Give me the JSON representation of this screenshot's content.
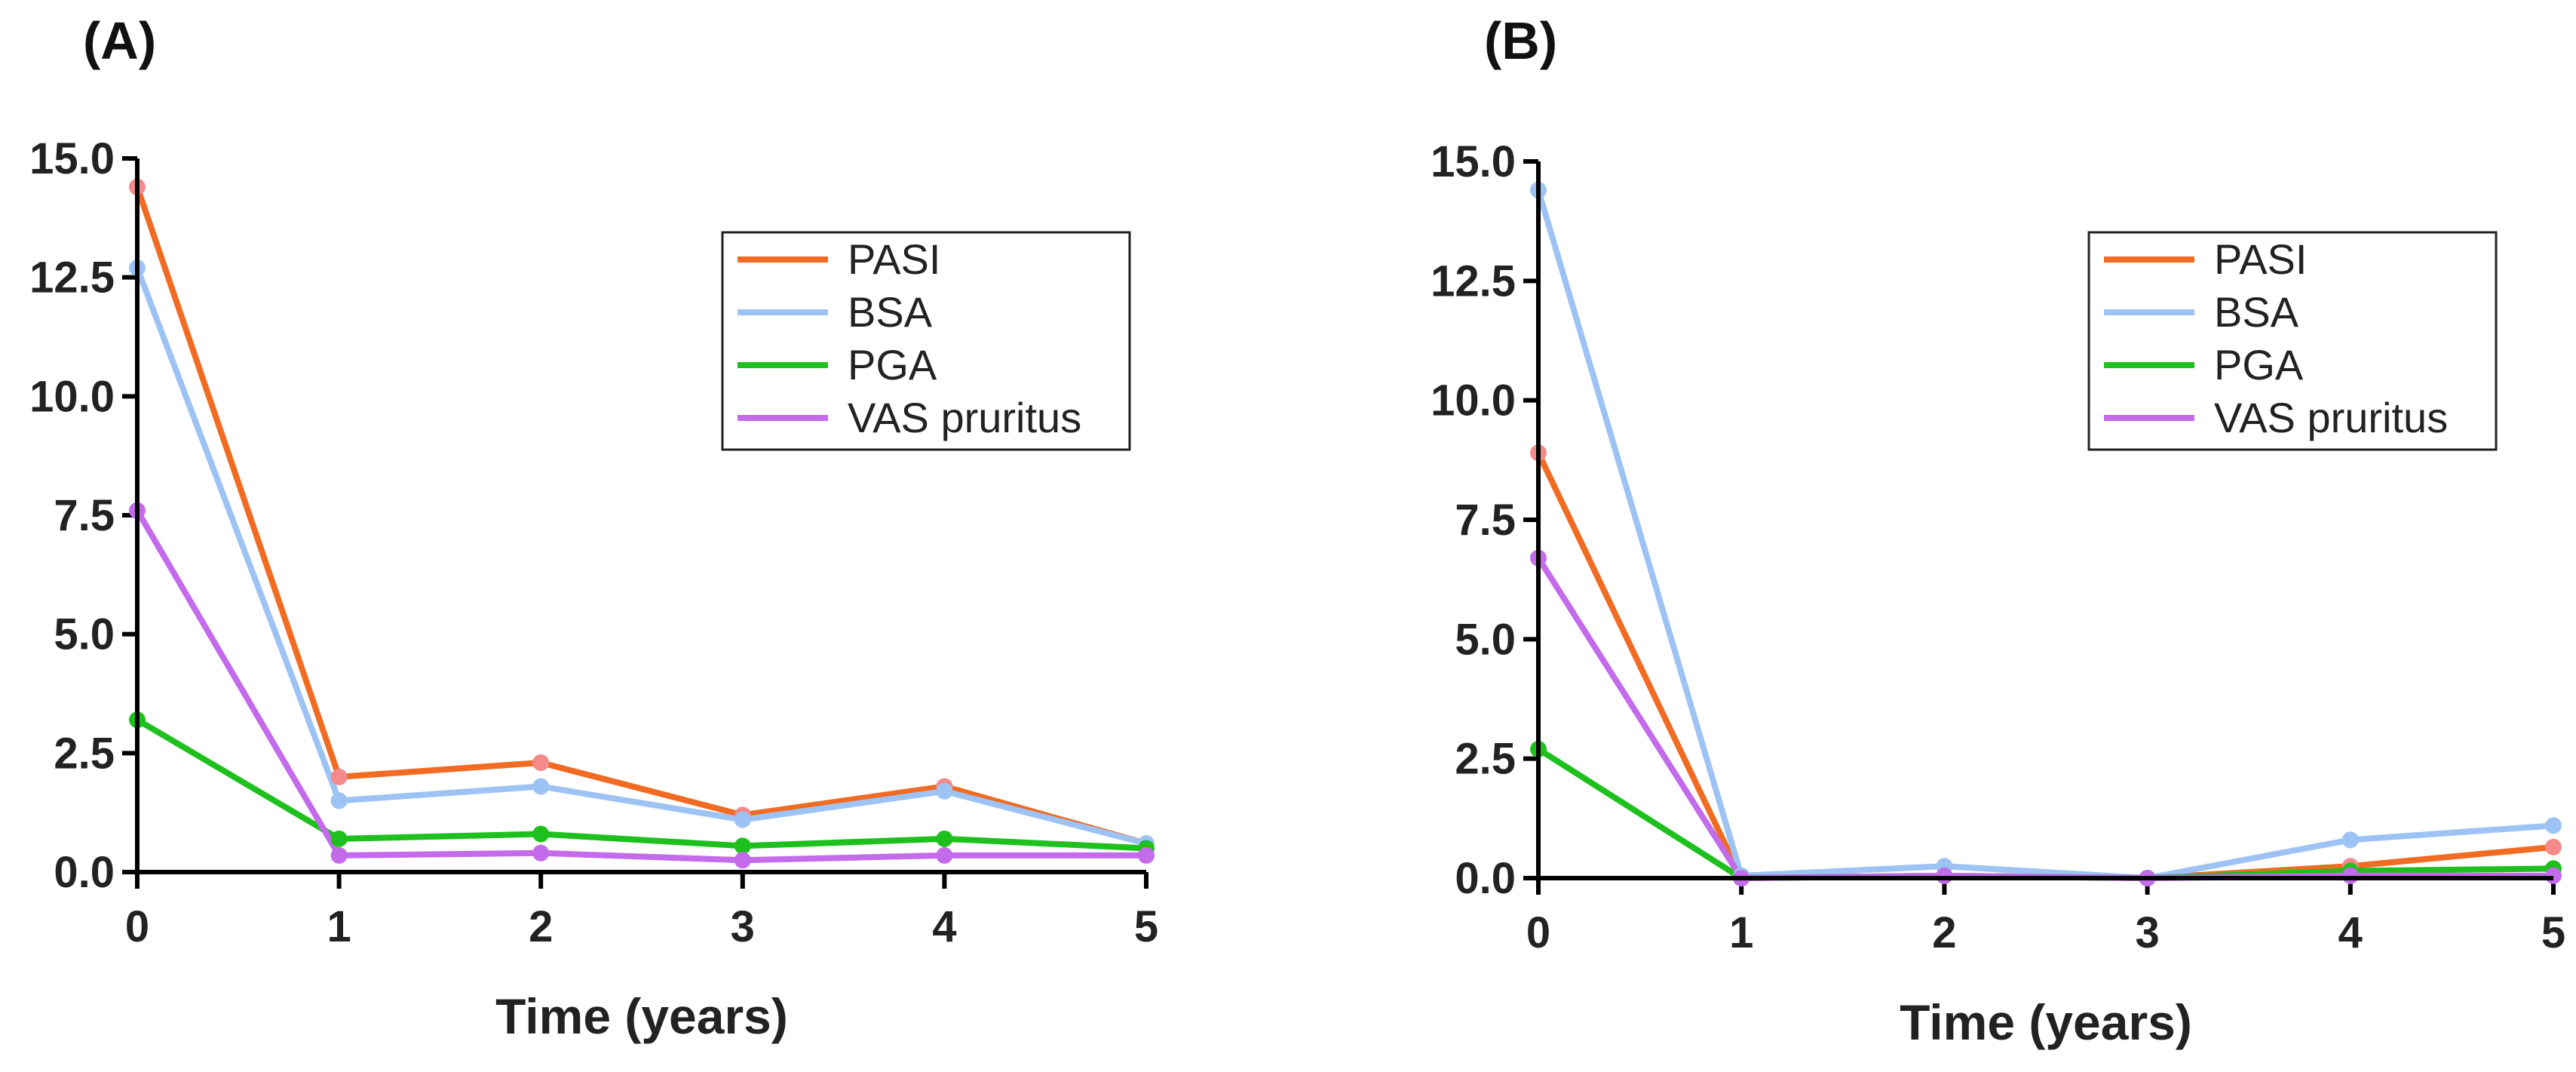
{
  "chart_data": [
    {
      "panel": "(A)",
      "type": "line",
      "x": [
        0,
        1,
        2,
        3,
        4,
        5
      ],
      "xlabel": "Time (years)",
      "ylabel": "",
      "xlim": [
        0,
        5
      ],
      "ylim": [
        0,
        15
      ],
      "xticks": [
        "0",
        "1",
        "2",
        "3",
        "4",
        "5"
      ],
      "yticks": [
        "0.0",
        "2.5",
        "5.0",
        "7.5",
        "10.0",
        "12.5",
        "15.0"
      ],
      "grid": false,
      "legend_position": "top-right",
      "series": [
        {
          "name": "PASI",
          "color": "#F26B22",
          "marker_color": "#F48A8A",
          "values": [
            14.4,
            2.0,
            2.3,
            1.2,
            1.8,
            0.6
          ]
        },
        {
          "name": "BSA",
          "color": "#9DC3F5",
          "marker_color": "#9DC3F5",
          "values": [
            12.7,
            1.5,
            1.8,
            1.1,
            1.7,
            0.6
          ]
        },
        {
          "name": "PGA",
          "color": "#1DC01D",
          "marker_color": "#1DC01D",
          "values": [
            3.2,
            0.7,
            0.8,
            0.55,
            0.7,
            0.5
          ]
        },
        {
          "name": "VAS pruritus",
          "color": "#C36BEA",
          "marker_color": "#C36BEA",
          "values": [
            7.6,
            0.35,
            0.4,
            0.25,
            0.35,
            0.35
          ]
        }
      ]
    },
    {
      "panel": "(B)",
      "type": "line",
      "x": [
        0,
        1,
        2,
        3,
        4,
        5
      ],
      "xlabel": "Time (years)",
      "ylabel": "",
      "xlim": [
        0,
        5
      ],
      "ylim": [
        0,
        15
      ],
      "xticks": [
        "0",
        "1",
        "2",
        "3",
        "4",
        "5"
      ],
      "yticks": [
        "0.0",
        "2.5",
        "5.0",
        "7.5",
        "10.0",
        "12.5",
        "15.0"
      ],
      "grid": false,
      "legend_position": "top-right",
      "series": [
        {
          "name": "PASI",
          "color": "#F26B22",
          "marker_color": "#F48A8A",
          "values": [
            8.9,
            0.0,
            0.05,
            0.0,
            0.25,
            0.65
          ]
        },
        {
          "name": "BSA",
          "color": "#9DC3F5",
          "marker_color": "#9DC3F5",
          "values": [
            14.4,
            0.05,
            0.25,
            0.0,
            0.8,
            1.1
          ]
        },
        {
          "name": "PGA",
          "color": "#1DC01D",
          "marker_color": "#1DC01D",
          "values": [
            2.7,
            0.0,
            0.05,
            0.0,
            0.15,
            0.2
          ]
        },
        {
          "name": "VAS pruritus",
          "color": "#C36BEA",
          "marker_color": "#C36BEA",
          "values": [
            6.7,
            0.0,
            0.05,
            0.0,
            0.05,
            0.05
          ]
        }
      ]
    }
  ]
}
